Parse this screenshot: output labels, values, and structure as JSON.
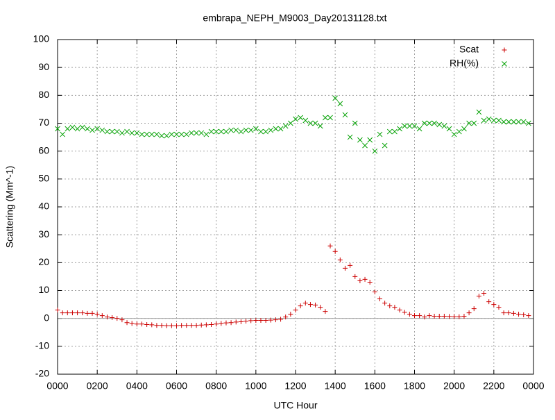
{
  "chart_data": {
    "type": "scatter",
    "title": "embrapa_NEPH_M9003_Day20131128.txt",
    "x_label": "UTC Hour",
    "y_label": "Scattering (Mm^-1)",
    "xlim": [
      0,
      24
    ],
    "ylim": [
      -20,
      100
    ],
    "xticks": [
      {
        "value": 0,
        "label": "0000"
      },
      {
        "value": 2,
        "label": "0200"
      },
      {
        "value": 4,
        "label": "0400"
      },
      {
        "value": 6,
        "label": "0600"
      },
      {
        "value": 8,
        "label": "0800"
      },
      {
        "value": 10,
        "label": "1000"
      },
      {
        "value": 12,
        "label": "1200"
      },
      {
        "value": 14,
        "label": "1400"
      },
      {
        "value": 16,
        "label": "1600"
      },
      {
        "value": 18,
        "label": "1800"
      },
      {
        "value": 20,
        "label": "2000"
      },
      {
        "value": 22,
        "label": "2200"
      },
      {
        "value": 24,
        "label": "0000"
      }
    ],
    "yticks": [
      -20,
      -10,
      0,
      10,
      20,
      30,
      40,
      50,
      60,
      70,
      80,
      90,
      100
    ],
    "grid": true,
    "legend": "top-right",
    "x": [
      0,
      0.25,
      0.5,
      0.75,
      1,
      1.25,
      1.5,
      1.75,
      2,
      2.25,
      2.5,
      2.75,
      3,
      3.25,
      3.5,
      3.75,
      4,
      4.25,
      4.5,
      4.75,
      5,
      5.25,
      5.5,
      5.75,
      6,
      6.25,
      6.5,
      6.75,
      7,
      7.25,
      7.5,
      7.75,
      8,
      8.25,
      8.5,
      8.75,
      9,
      9.25,
      9.5,
      9.75,
      10,
      10.25,
      10.5,
      10.75,
      11,
      11.25,
      11.5,
      11.75,
      12,
      12.25,
      12.5,
      12.75,
      13,
      13.25,
      13.5,
      13.75,
      14,
      14.25,
      14.5,
      14.75,
      15,
      15.25,
      15.5,
      15.75,
      16,
      16.25,
      16.5,
      16.75,
      17,
      17.25,
      17.5,
      17.75,
      18,
      18.25,
      18.5,
      18.75,
      19,
      19.25,
      19.5,
      19.75,
      20,
      20.25,
      20.5,
      20.75,
      21,
      21.25,
      21.5,
      21.75,
      22,
      22.25,
      22.5,
      22.75,
      23,
      23.25,
      23.5,
      23.75
    ],
    "series": [
      {
        "name": "Scat",
        "color": "#cc0000",
        "marker": "plus",
        "values": [
          3,
          2,
          2,
          2,
          2,
          2,
          1.8,
          1.8,
          1.5,
          1,
          0.5,
          0.3,
          0,
          -0.5,
          -1.5,
          -1.8,
          -2,
          -2,
          -2.2,
          -2.3,
          -2.5,
          -2.5,
          -2.6,
          -2.6,
          -2.6,
          -2.5,
          -2.5,
          -2.5,
          -2.5,
          -2.4,
          -2.3,
          -2.2,
          -2,
          -1.8,
          -1.6,
          -1.5,
          -1.3,
          -1.2,
          -1,
          -0.8,
          -0.7,
          -0.7,
          -0.7,
          -0.6,
          -0.5,
          -0.3,
          0.5,
          1.5,
          3,
          4.5,
          5.5,
          5,
          4.8,
          4,
          2.5,
          26,
          24,
          21,
          18,
          19,
          15,
          13.5,
          14,
          13,
          9.5,
          7,
          5.5,
          4.5,
          4,
          3,
          2.2,
          1.5,
          1,
          1,
          0.5,
          1,
          0.8,
          0.8,
          0.8,
          0.7,
          0.6,
          0.6,
          0.8,
          2,
          3.5,
          8,
          9,
          6,
          5,
          4,
          2,
          2,
          1.8,
          1.5,
          1.3,
          1
        ]
      },
      {
        "name": "RH(%)",
        "color": "#00a000",
        "marker": "cross",
        "values": [
          68,
          66,
          68,
          68.5,
          68,
          68.5,
          68,
          67.5,
          68,
          67.5,
          67,
          67,
          67,
          66.5,
          67,
          66.5,
          66.5,
          66,
          66,
          66,
          66,
          65.5,
          65.5,
          66,
          66,
          66,
          66,
          66.5,
          66.5,
          66.5,
          66,
          67,
          67,
          67,
          67,
          67.5,
          67.5,
          67,
          67.5,
          67.5,
          68,
          67,
          67,
          67.5,
          68,
          68,
          69,
          70,
          71.5,
          72,
          71,
          70,
          70,
          69,
          72,
          72,
          79,
          77,
          73,
          65,
          70,
          64,
          62,
          64,
          60,
          66,
          62,
          67,
          67,
          68,
          69,
          69,
          69,
          68,
          70,
          70,
          70,
          69.5,
          69,
          68,
          66,
          67,
          68,
          70,
          70,
          74,
          71,
          71.5,
          71,
          71,
          70.5,
          70.5,
          70.5,
          70.5,
          70.5,
          70
        ]
      }
    ]
  }
}
